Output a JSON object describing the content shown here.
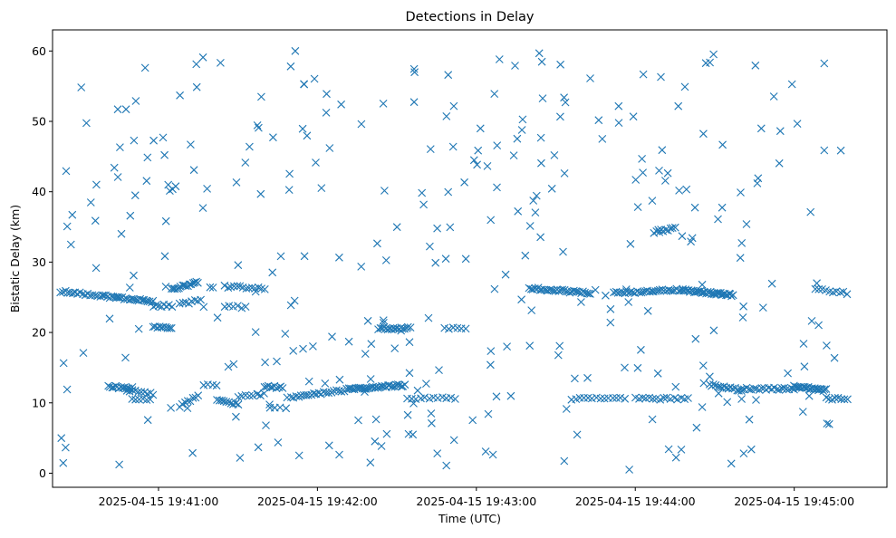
{
  "chart_data": {
    "type": "scatter",
    "title": "Detections in Delay",
    "xlabel": "Time (UTC)",
    "ylabel": "Bistatic Delay (km)",
    "marker": "x",
    "color": "#1f77b4",
    "xlim": [
      "2025-04-15 19:40:20",
      "2025-04-15 19:45:35"
    ],
    "ylim": [
      -2,
      63
    ],
    "x_ticks": [
      "2025-04-15 19:41:00",
      "2025-04-15 19:42:00",
      "2025-04-15 19:43:00",
      "2025-04-15 19:44:00",
      "2025-04-15 19:45:00"
    ],
    "y_ticks": [
      0,
      10,
      20,
      30,
      40,
      50,
      60
    ],
    "grid": false,
    "series": [
      {
        "seed": 20250415,
        "tracks": [
          {
            "from": "19:40:23",
            "to": "19:40:37",
            "y_start": 25.8,
            "y_end": 25.3,
            "n": 16
          },
          {
            "from": "19:40:38",
            "to": "19:40:58",
            "y_start": 25.2,
            "y_end": 24.4,
            "n": 30
          },
          {
            "from": "19:40:58",
            "to": "19:41:05",
            "y_start": 20.8,
            "y_end": 20.5,
            "n": 10
          },
          {
            "from": "19:40:58",
            "to": "19:41:05",
            "y_start": 23.8,
            "y_end": 23.8,
            "n": 8
          },
          {
            "from": "19:41:05",
            "to": "19:41:15",
            "y_start": 26.1,
            "y_end": 27.2,
            "n": 16
          },
          {
            "from": "19:41:08",
            "to": "19:41:16",
            "y_start": 24.0,
            "y_end": 24.6,
            "n": 8
          },
          {
            "from": "19:41:25",
            "to": "19:41:40",
            "y_start": 26.5,
            "y_end": 26.3,
            "n": 14
          },
          {
            "from": "19:41:25",
            "to": "19:41:33",
            "y_start": 23.8,
            "y_end": 23.6,
            "n": 6
          },
          {
            "from": "19:40:41",
            "to": "19:40:50",
            "y_start": 12.3,
            "y_end": 12.1,
            "n": 14
          },
          {
            "from": "19:40:48",
            "to": "19:40:58",
            "y_start": 11.8,
            "y_end": 11.2,
            "n": 10
          },
          {
            "from": "19:40:50",
            "to": "19:40:57",
            "y_start": 10.6,
            "y_end": 10.6,
            "n": 6
          },
          {
            "from": "19:41:08",
            "to": "19:41:15",
            "y_start": 9.5,
            "y_end": 11.0,
            "n": 8
          },
          {
            "from": "19:41:17",
            "to": "19:41:22",
            "y_start": 12.5,
            "y_end": 12.5,
            "n": 4
          },
          {
            "from": "19:41:22",
            "to": "19:41:30",
            "y_start": 10.5,
            "y_end": 9.8,
            "n": 10
          },
          {
            "from": "19:41:30",
            "to": "19:41:40",
            "y_start": 10.9,
            "y_end": 11.2,
            "n": 8
          },
          {
            "from": "19:41:40",
            "to": "19:41:47",
            "y_start": 12.3,
            "y_end": 12.2,
            "n": 10
          },
          {
            "from": "19:41:42",
            "to": "19:41:48",
            "y_start": 9.3,
            "y_end": 9.3,
            "n": 4
          },
          {
            "from": "19:41:50",
            "to": "19:42:12",
            "y_start": 10.8,
            "y_end": 11.9,
            "n": 24
          },
          {
            "from": "19:42:12",
            "to": "19:42:33",
            "y_start": 12.0,
            "y_end": 12.5,
            "n": 34
          },
          {
            "from": "19:42:23",
            "to": "19:42:35",
            "y_start": 20.6,
            "y_end": 20.6,
            "n": 18
          },
          {
            "from": "19:42:34",
            "to": "19:42:52",
            "y_start": 10.7,
            "y_end": 10.6,
            "n": 12
          },
          {
            "from": "19:42:48",
            "to": "19:42:56",
            "y_start": 20.6,
            "y_end": 20.6,
            "n": 6
          },
          {
            "from": "19:43:20",
            "to": "19:43:43",
            "y_start": 26.3,
            "y_end": 25.6,
            "n": 34
          },
          {
            "from": "19:43:36",
            "to": "19:43:56",
            "y_start": 10.6,
            "y_end": 10.6,
            "n": 14
          },
          {
            "from": "19:43:52",
            "to": "19:44:18",
            "y_start": 25.6,
            "y_end": 26.1,
            "n": 34
          },
          {
            "from": "19:44:07",
            "to": "19:44:15",
            "y_start": 34.3,
            "y_end": 34.8,
            "n": 10
          },
          {
            "from": "19:44:18",
            "to": "19:44:37",
            "y_start": 26.0,
            "y_end": 25.3,
            "n": 36
          },
          {
            "from": "19:44:00",
            "to": "19:44:20",
            "y_start": 10.6,
            "y_end": 10.6,
            "n": 16
          },
          {
            "from": "19:44:28",
            "to": "19:44:40",
            "y_start": 12.6,
            "y_end": 11.8,
            "n": 16
          },
          {
            "from": "19:44:40",
            "to": "19:45:00",
            "y_start": 12.0,
            "y_end": 12.0,
            "n": 22
          },
          {
            "from": "19:45:00",
            "to": "19:45:12",
            "y_start": 12.3,
            "y_end": 11.8,
            "n": 26
          },
          {
            "from": "19:45:12",
            "to": "19:45:20",
            "y_start": 10.6,
            "y_end": 10.6,
            "n": 8
          },
          {
            "from": "19:45:08",
            "to": "19:45:20",
            "y_start": 26.1,
            "y_end": 25.6,
            "n": 10
          }
        ],
        "sparse": [
          {
            "from": "19:40:23",
            "to": "19:45:21",
            "y_min": 0.5,
            "y_max": 60,
            "n": 330
          }
        ]
      }
    ]
  }
}
